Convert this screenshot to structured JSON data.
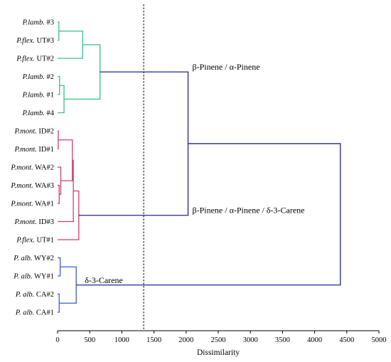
{
  "chart_data": {
    "type": "dendrogram",
    "xlabel": "Dissimilarity",
    "xlim": [
      0,
      5000
    ],
    "xticks": [
      0,
      500,
      1000,
      1500,
      2000,
      2500,
      3000,
      3500,
      4000,
      4500,
      5000
    ],
    "cutoff": 1340,
    "leaves": [
      {
        "genus": "P.lamb.",
        "rest": " #3"
      },
      {
        "genus": "P.flex.",
        "rest": " UT#3"
      },
      {
        "genus": "P.flex.",
        "rest": " UT#2"
      },
      {
        "genus": "P.lamb.",
        "rest": " #2"
      },
      {
        "genus": "P.lamb.",
        "rest": " #1"
      },
      {
        "genus": "P.lamb.",
        "rest": " #4"
      },
      {
        "genus": "P.mont.",
        "rest": " ID#2"
      },
      {
        "genus": "P.mont.",
        "rest": " ID#1"
      },
      {
        "genus": "P.mont.",
        "rest": " WA#2"
      },
      {
        "genus": "P.mont.",
        "rest": " WA#3"
      },
      {
        "genus": "P.mont.",
        "rest": " WA#1"
      },
      {
        "genus": "P.mont.",
        "rest": " ID#3"
      },
      {
        "genus": "P.flex.",
        "rest": " UT#1"
      },
      {
        "genus": "P. alb.",
        "rest": " WY#2"
      },
      {
        "genus": "P. alb.",
        "rest": " WY#1"
      },
      {
        "genus": "P. alb.",
        "rest": " CA#2"
      },
      {
        "genus": "P. alb.",
        "rest": " CA#1"
      }
    ],
    "merges": [
      {
        "id": "g1",
        "children": [
          "L0",
          "L1"
        ],
        "height": 20,
        "color": "green"
      },
      {
        "id": "g2",
        "children": [
          "g1",
          "L2"
        ],
        "height": 390,
        "color": "green"
      },
      {
        "id": "g3",
        "children": [
          "L3",
          "L4"
        ],
        "height": 30,
        "color": "green"
      },
      {
        "id": "g4",
        "children": [
          "g3",
          "L5"
        ],
        "height": 100,
        "color": "green"
      },
      {
        "id": "g5",
        "children": [
          "g2",
          "g4"
        ],
        "height": 660,
        "color": "green"
      },
      {
        "id": "r1",
        "children": [
          "L6",
          "L7"
        ],
        "height": 10,
        "color": "red"
      },
      {
        "id": "r2",
        "children": [
          "L9",
          "L10"
        ],
        "height": 25,
        "color": "red"
      },
      {
        "id": "r3",
        "children": [
          "L8",
          "r2"
        ],
        "height": 50,
        "color": "red"
      },
      {
        "id": "r4",
        "children": [
          "r1",
          "r3"
        ],
        "height": 230,
        "color": "red"
      },
      {
        "id": "r5",
        "children": [
          "r4",
          "L11"
        ],
        "height": 245,
        "color": "red"
      },
      {
        "id": "r6",
        "children": [
          "r5",
          "L12"
        ],
        "height": 330,
        "color": "red"
      },
      {
        "id": "b1",
        "children": [
          "L13",
          "L14"
        ],
        "height": 40,
        "color": "blue"
      },
      {
        "id": "b2",
        "children": [
          "L15",
          "L16"
        ],
        "height": 25,
        "color": "blue"
      },
      {
        "id": "b3",
        "children": [
          "b1",
          "b2"
        ],
        "height": 290,
        "color": "blue"
      },
      {
        "id": "n1",
        "children": [
          "g5",
          "r6"
        ],
        "height": 2030,
        "color": "navy"
      },
      {
        "id": "n2",
        "children": [
          "n1",
          "b3"
        ],
        "height": 4400,
        "color": "navy"
      }
    ],
    "annotations": [
      {
        "text": "β-Pinene / α-Pinene",
        "at": "g5"
      },
      {
        "text": "β-Pinene / α-Pinene / δ-3-Carene",
        "at": "r6"
      },
      {
        "text": "δ-3-Carene",
        "at": "b3"
      }
    ],
    "colors": {
      "green": "#3cbf8a",
      "red": "#d03c6c",
      "blue": "#3a5fd0",
      "navy": "#24248c",
      "axis": "#000000"
    }
  }
}
